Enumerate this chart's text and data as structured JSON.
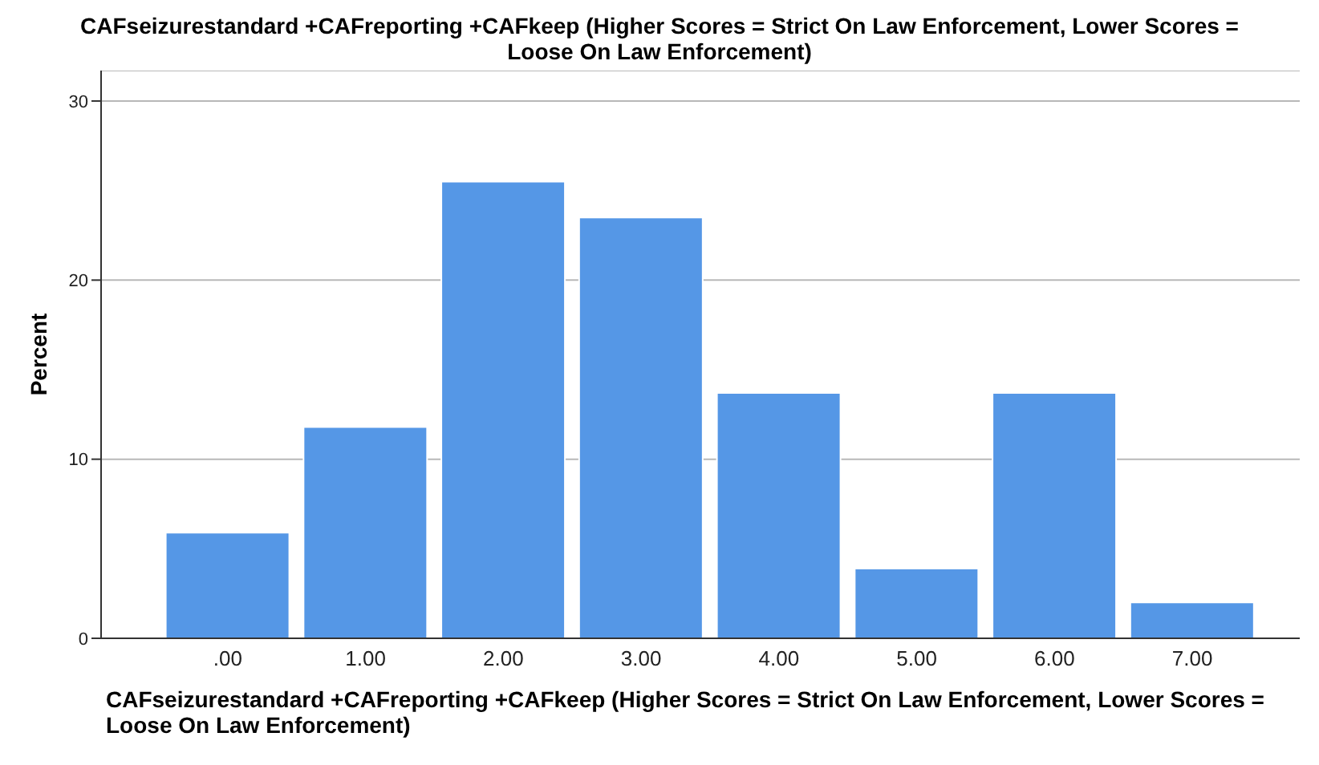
{
  "chart_data": {
    "type": "bar",
    "title": "CAFseizurestandard +CAFreporting +CAFkeep (Higher Scores = Strict On Law Enforcement, Lower Scores = Loose On Law Enforcement)",
    "xlabel": "CAFseizurestandard +CAFreporting +CAFkeep (Higher Scores = Strict On Law Enforcement, Lower Scores = Loose On Law Enforcement)",
    "ylabel": "Percent",
    "categories": [
      ".00",
      "1.00",
      "2.00",
      "3.00",
      "4.00",
      "5.00",
      "6.00",
      "7.00"
    ],
    "values": [
      5.9,
      11.8,
      25.5,
      23.5,
      13.7,
      3.9,
      13.7,
      2.0
    ],
    "color": "#5597e6",
    "ylim": [
      0,
      31.7
    ],
    "yticks": [
      0,
      10,
      20,
      30
    ],
    "grid": "y"
  }
}
